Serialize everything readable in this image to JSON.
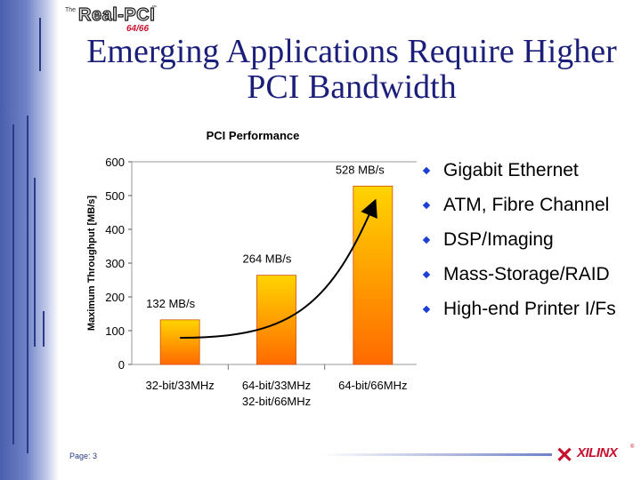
{
  "logo": {
    "prefix": "The",
    "brand": "Real-PCI",
    "tm": "™",
    "sub": "64/66"
  },
  "slide": {
    "title": "Emerging Applications Require Higher PCI Bandwidth",
    "page": "Page: 3"
  },
  "bullets": [
    "Gigabit Ethernet",
    "ATM, Fibre Channel",
    "DSP/Imaging",
    "Mass-Storage/RAID",
    "High-end Printer I/Fs"
  ],
  "footer_logo": {
    "mark": "✕",
    "word": "XILINX",
    "reg": "®"
  },
  "colors": {
    "title": "#1c1f7a",
    "bar_top": "#ffd400",
    "bar_bottom": "#ff6a00",
    "bullet": "#1c3fd6",
    "sidebar": "#4a5fae"
  },
  "chart_data": {
    "type": "bar",
    "title": "PCI Performance",
    "ylabel": "Maximum Throughput [MB/s]",
    "categories": [
      [
        "32-bit/33MHz"
      ],
      [
        "64-bit/33MHz",
        "32-bit/66MHz"
      ],
      [
        "64-bit/66MHz"
      ]
    ],
    "values": [
      132,
      264,
      528
    ],
    "data_labels": [
      "132 MB/s",
      "264 MB/s",
      "528 MB/s"
    ],
    "ylim": [
      0,
      600
    ],
    "yticks": [
      0,
      100,
      200,
      300,
      400,
      500,
      600
    ],
    "grid": false,
    "annotation": "curved arrow rising from first bar to third bar"
  }
}
